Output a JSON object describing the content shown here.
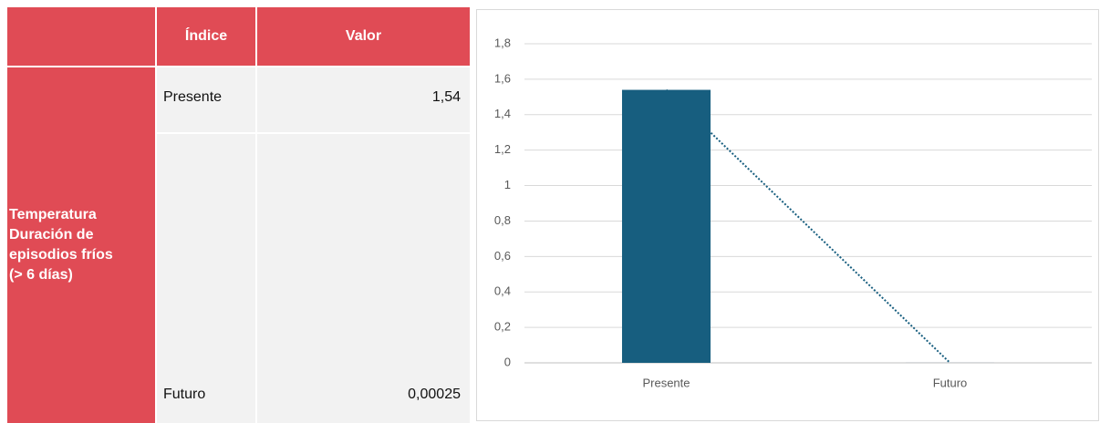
{
  "table": {
    "headers": [
      "Índice",
      "Valor"
    ],
    "row_header": [
      "Temperatura",
      "Duración de",
      "episodios fríos",
      "(> 6 días)"
    ],
    "rows": [
      [
        "Presente",
        "1,54"
      ],
      [
        "Futuro",
        "0,00025"
      ]
    ]
  },
  "chart_data": {
    "type": "bar",
    "categories": [
      "Presente",
      "Futuro"
    ],
    "values": [
      1.54,
      0.00025
    ],
    "color": "#175e7f",
    "trendline": true,
    "ylim": [
      0,
      1.8
    ],
    "yticks": [
      0,
      {
        "value": 0.2,
        "label": "0,2"
      },
      {
        "value": 0.4,
        "label": "0,4"
      },
      {
        "value": 0.6,
        "label": "0,6"
      },
      {
        "value": 0.8,
        "label": "0,8"
      },
      1,
      {
        "value": 1.2,
        "label": "1,2"
      },
      {
        "value": 1.4,
        "label": "1,4"
      },
      {
        "value": 1.6,
        "label": "1,6"
      },
      {
        "value": 1.8,
        "label": "1,8"
      }
    ],
    "grid": true
  }
}
